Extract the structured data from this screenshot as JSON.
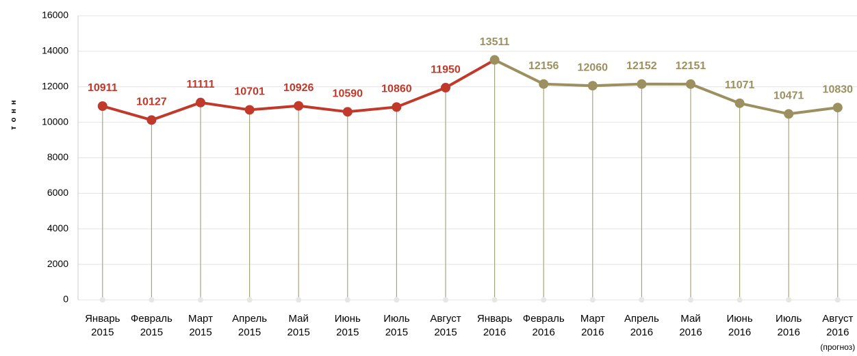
{
  "chart_data": {
    "type": "line",
    "y_label": "тонн",
    "categories": [
      "Январь\n2015",
      "Февраль\n2015",
      "Март\n2015",
      "Апрель\n2015",
      "Май\n2015",
      "Июнь\n2015",
      "Июль\n2015",
      "Август\n2015",
      "Январь\n2016",
      "Февраль\n2016",
      "Март\n2016",
      "Апрель\n2016",
      "Май\n2016",
      "Июнь\n2016",
      "Июль\n2016",
      "Август\n2016\n(прогноз)"
    ],
    "series": [
      {
        "color": "#c0392b",
        "values": [
          10911,
          10127,
          11111,
          10701,
          10926,
          10590,
          10860,
          11950,
          null,
          null,
          null,
          null,
          null,
          null,
          null,
          null
        ]
      },
      {
        "color": "#9c9060",
        "values": [
          null,
          null,
          null,
          null,
          null,
          null,
          null,
          null,
          13511,
          12156,
          12060,
          12152,
          12151,
          11071,
          10471,
          10830
        ]
      }
    ],
    "ylim": [
      0,
      16000
    ],
    "yticks": [
      0,
      2000,
      4000,
      6000,
      8000,
      10000,
      12000,
      14000,
      16000
    ],
    "grid": true
  }
}
